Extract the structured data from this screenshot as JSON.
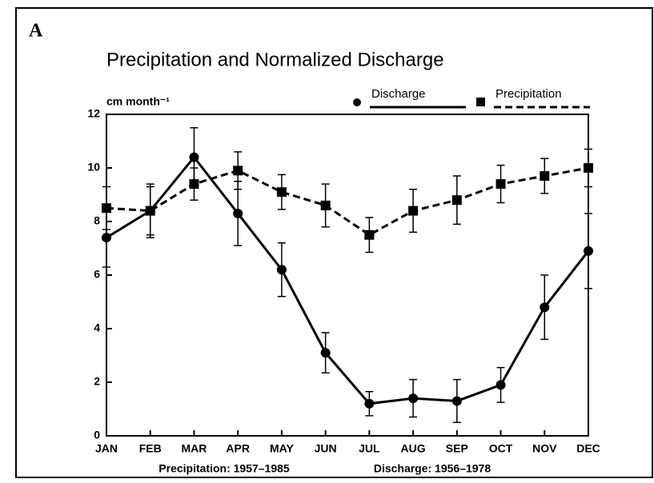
{
  "chart_data": {
    "type": "line",
    "panel": "A",
    "title": "Precipitation and Normalized Discharge",
    "ylabel": "cm month⁻¹",
    "categories": [
      "JAN",
      "FEB",
      "MAR",
      "APR",
      "MAY",
      "JUN",
      "JUL",
      "AUG",
      "SEP",
      "OCT",
      "NOV",
      "DEC"
    ],
    "series": [
      {
        "name": "Discharge",
        "color": "#000000",
        "marker": "circle",
        "dash": "solid",
        "values": [
          7.4,
          8.4,
          10.4,
          8.3,
          6.2,
          3.1,
          1.2,
          1.4,
          1.3,
          1.9,
          4.8,
          6.9
        ],
        "errors": [
          1.1,
          1.0,
          1.1,
          1.2,
          1.0,
          0.75,
          0.45,
          0.7,
          0.8,
          0.65,
          1.2,
          1.4
        ]
      },
      {
        "name": "Precipitation",
        "color": "#000000",
        "marker": "square",
        "dash": "dashed",
        "values": [
          8.5,
          8.4,
          9.4,
          9.9,
          9.1,
          8.6,
          7.5,
          8.4,
          8.8,
          9.4,
          9.7,
          10.0
        ],
        "errors": [
          0.8,
          0.9,
          0.6,
          0.7,
          0.65,
          0.8,
          0.65,
          0.8,
          0.9,
          0.7,
          0.65,
          0.7
        ]
      }
    ],
    "ylim": [
      0,
      12
    ],
    "yticks": [
      0,
      2,
      4,
      6,
      8,
      10,
      12
    ],
    "footnotes": [
      "Precipitation: 1957–1985",
      "Discharge: 1956–1978"
    ]
  }
}
